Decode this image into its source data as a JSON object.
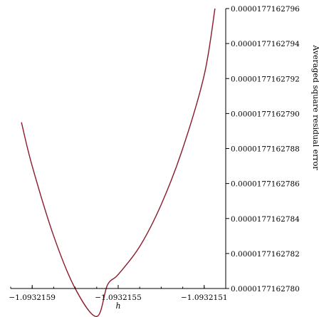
{
  "chart_data": {
    "type": "line",
    "title": "",
    "xlabel": "h",
    "ylabel": "Averaged square residual error",
    "xlim": [
      -1.093216,
      -1.093215
    ],
    "ylim": [
      1.7716278e-05,
      1.77162796e-05
    ],
    "x_ticks": [
      -1.0932159,
      -1.0932155,
      -1.0932151
    ],
    "x_tick_labels": [
      "−1.0932159",
      "−1.0932155",
      "−1.0932151"
    ],
    "y_ticks": [
      1.7716278e-05,
      1.77162782e-05,
      1.77162784e-05,
      1.77162786e-05,
      1.77162788e-05,
      1.7716279e-05,
      1.77162792e-05,
      1.77162794e-05,
      1.77162796e-05
    ],
    "y_tick_labels": [
      "0.0000177162780",
      "0.0000177162782",
      "0.0000177162784",
      "0.0000177162786",
      "0.0000177162788",
      "0.0000177162790",
      "0.0000177162792",
      "0.0000177162794",
      "0.0000177162796"
    ],
    "y_axis_position": "right",
    "grid": false,
    "color": "#8b1a2b",
    "series": [
      {
        "x": [
          -1.09321595,
          -1.0932159,
          -1.0932158,
          -1.0932157,
          -1.0932156,
          -1.09321555,
          -1.0932155,
          -1.0932154,
          -1.0932153,
          -1.0932152,
          -1.0932151,
          -1.09321505
        ],
        "y": [
          1.771627895e-05,
          1.77162787e-05,
          1.77162783e-05,
          1.7716278e-05,
          1.771627784e-05,
          1.771627802e-05,
          1.771627808e-05,
          1.771627824e-05,
          1.771627848e-05,
          1.77162788e-05,
          1.771627922e-05,
          1.77162796e-05
        ]
      }
    ]
  }
}
